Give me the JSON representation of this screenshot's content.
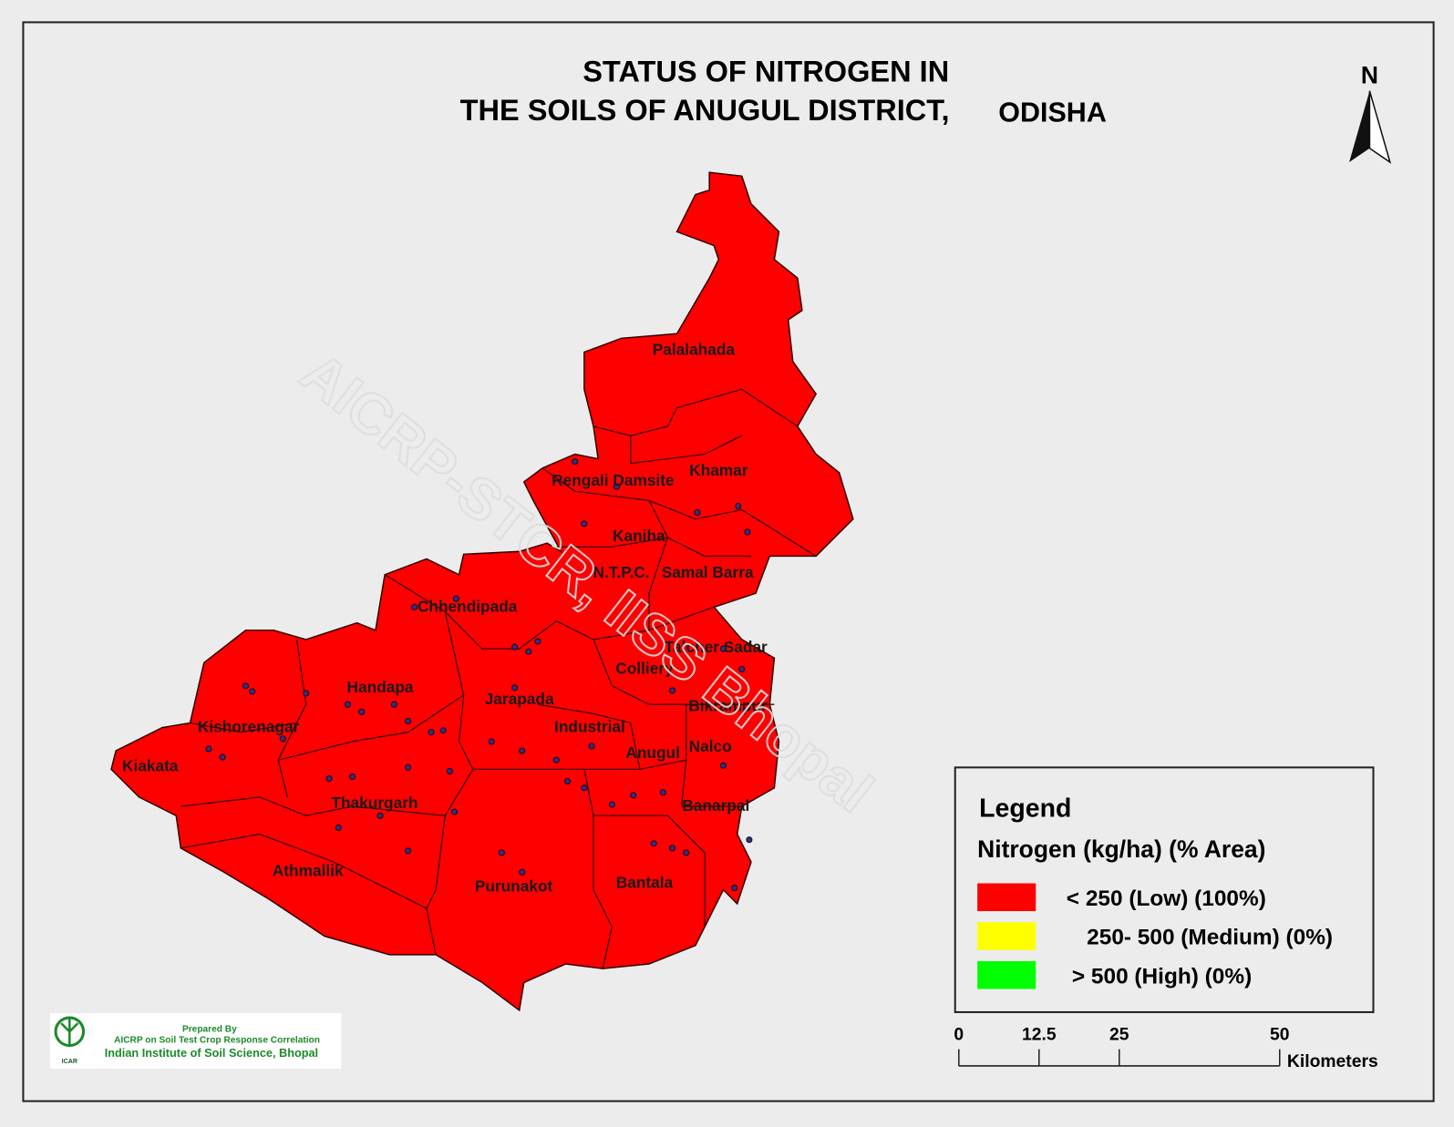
{
  "title_line1": "STATUS OF NITROGEN   IN",
  "title_line2": "THE SOILS OF ANUGUL  DISTRICT,",
  "title_line2_tail": "ODISHA",
  "north": "N",
  "blocks": [
    "Palalahada",
    "Khamar",
    "Rengali Damsite",
    "Kaniha",
    "N.T.P.C.",
    "Samal Barra",
    "Chhendipada",
    "Talcher Sadar",
    "Colliery",
    "Handapa",
    "Jarapada",
    "Bikrampur",
    "Kishorenagar",
    "Industrial",
    "Anugul",
    "Nalco",
    "Kiakata",
    "Thakurgarh",
    "Banarpal",
    "Athmallik",
    "Purunakot",
    "Bantala"
  ],
  "watermark": "AICRP-STCR, IISS Bhopal",
  "legend": {
    "title": "Legend",
    "subtitle": "Nitrogen (kg/ha) (% Area)",
    "items": [
      {
        "label": "<  250 (Low) (100%)",
        "color": "#ff0000"
      },
      {
        "label": "250- 500 (Medium) (0%)",
        "color": "#ffff00"
      },
      {
        "label": "> 500 (High)  (0%)",
        "color": "#00ff00"
      }
    ]
  },
  "scale": {
    "ticks": [
      0,
      12.5,
      25,
      50
    ],
    "unit": "Kilometers"
  },
  "credit": {
    "line1": "Prepared By",
    "line2": "AICRP on Soil Test Crop Response Correlation",
    "line3": "Indian Institute of Soil Science, Bhopal",
    "logo": "ICAR"
  }
}
